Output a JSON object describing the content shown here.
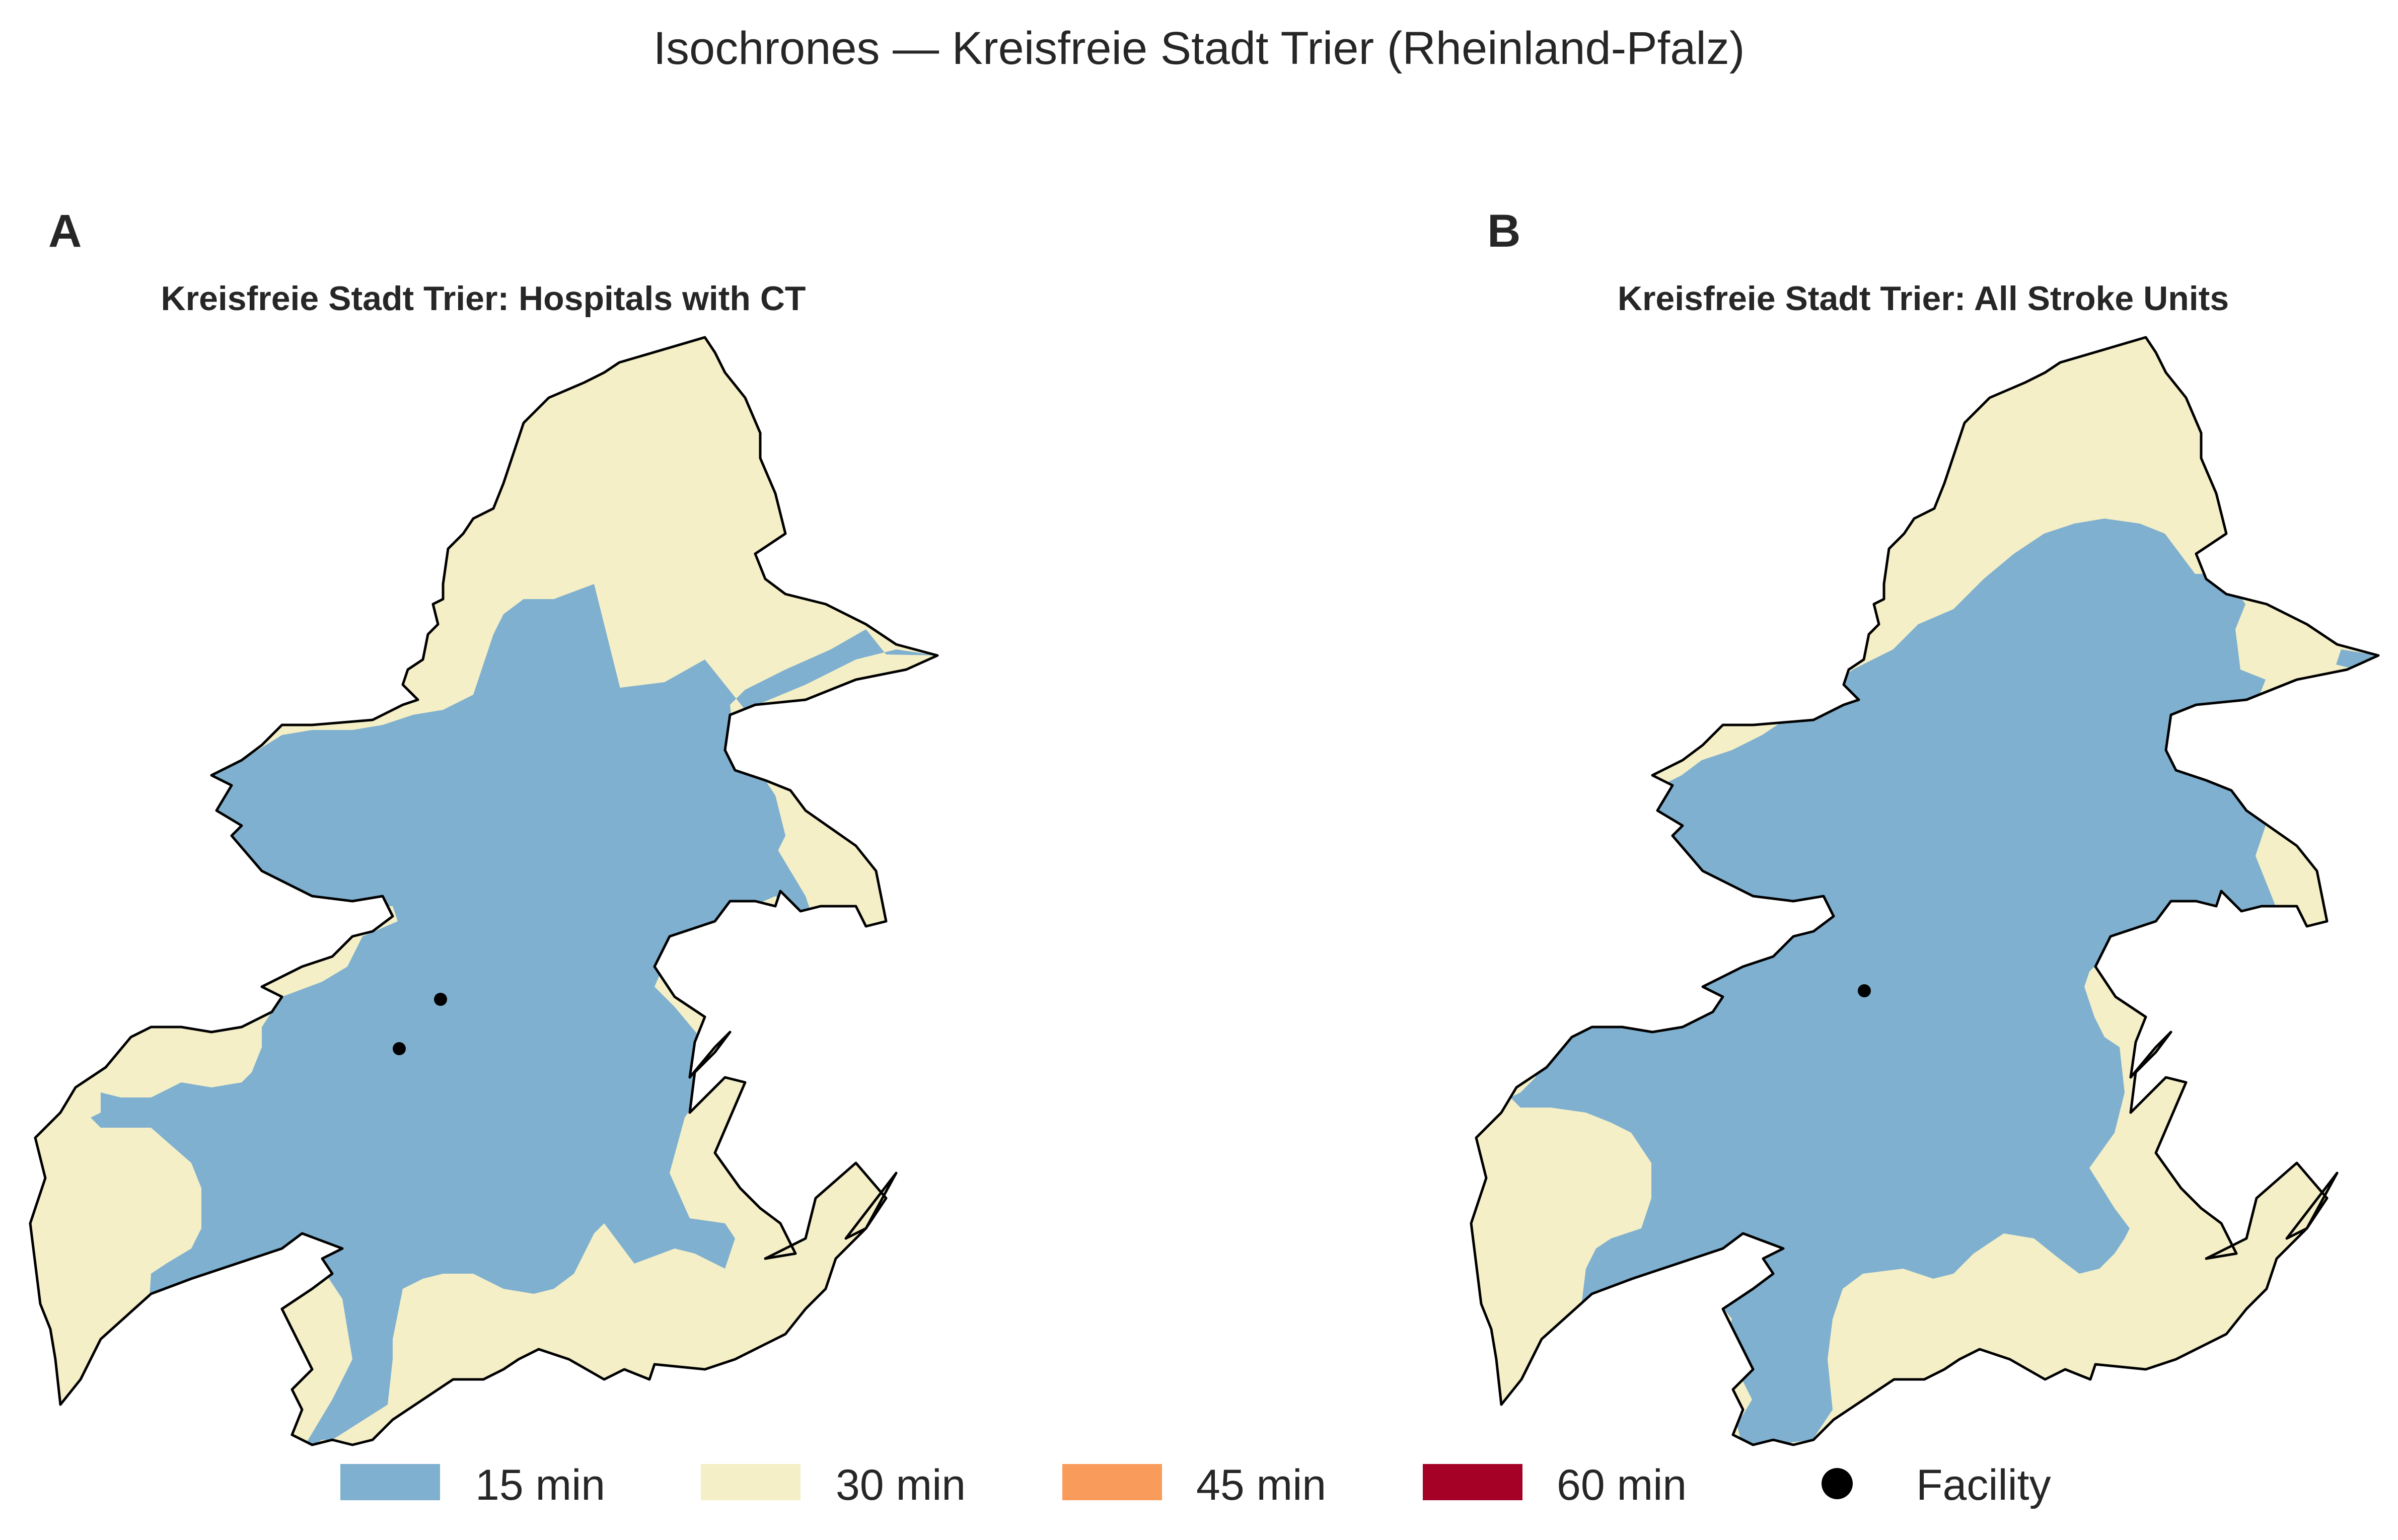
{
  "figure": {
    "title": "Isochrones — Kreisfreie Stadt Trier (Rheinland-Pfalz)"
  },
  "panels": [
    {
      "letter": "A",
      "title": "Kreisfreie Stadt Trier: Hospitals with CT",
      "facility_count": 2
    },
    {
      "letter": "B",
      "title": "Kreisfreie Stadt Trier: All Stroke Units",
      "facility_count": 1
    }
  ],
  "legend": {
    "items": [
      {
        "label": "15 min",
        "color": "#7fb0cf",
        "kind": "area"
      },
      {
        "label": "30 min",
        "color": "#f4efc7",
        "kind": "area"
      },
      {
        "label": "45 min",
        "color": "#f99b5a",
        "kind": "area"
      },
      {
        "label": "60 min",
        "color": "#a50026",
        "kind": "area"
      },
      {
        "label": "Facility",
        "color": "#000000",
        "kind": "point"
      }
    ]
  },
  "colors": {
    "zone_15": "#7fb0cf",
    "zone_30": "#f4efc7",
    "boundary": "#000000",
    "facility": "#000000"
  }
}
